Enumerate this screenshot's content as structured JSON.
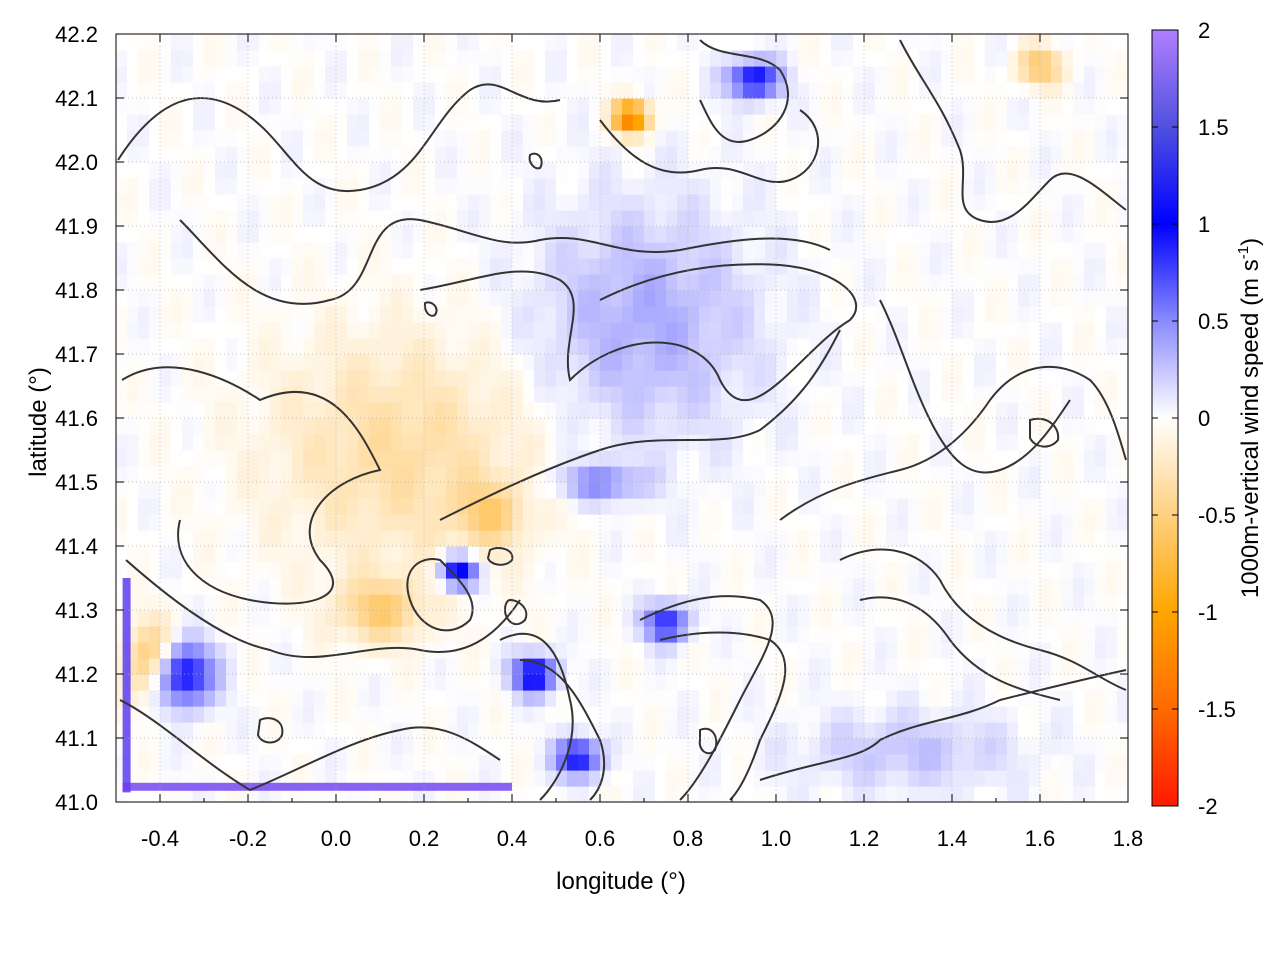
{
  "chart_data": {
    "type": "heatmap",
    "title": "",
    "xlabel": "longitude (°)",
    "ylabel": "latitude (°)",
    "xlim": [
      -0.5,
      1.8
    ],
    "ylim": [
      41.0,
      42.2
    ],
    "x_ticks": [
      "-0.4",
      "-0.2",
      "0.0",
      "0.2",
      "0.4",
      "0.6",
      "0.8",
      "1.0",
      "1.2",
      "1.4",
      "1.6",
      "1.8"
    ],
    "x_tick_values": [
      -0.4,
      -0.2,
      0.0,
      0.2,
      0.4,
      0.6,
      0.8,
      1.0,
      1.2,
      1.4,
      1.6,
      1.8
    ],
    "y_ticks": [
      "41.0",
      "41.1",
      "41.2",
      "41.3",
      "41.4",
      "41.5",
      "41.6",
      "41.7",
      "41.8",
      "41.9",
      "42.0",
      "42.1",
      "42.2"
    ],
    "y_tick_values": [
      41.0,
      41.1,
      41.2,
      41.3,
      41.4,
      41.5,
      41.6,
      41.7,
      41.8,
      41.9,
      42.0,
      42.1,
      42.2
    ],
    "grid": true,
    "colorbar": {
      "label_main": "1000m-vertical wind speed (m s",
      "label_sup": "-1",
      "label_end": ")",
      "range": [
        -2,
        2
      ],
      "tick_labels": [
        "2",
        "1.5",
        "1",
        "0.5",
        "0",
        "-0.5",
        "-1",
        "-1.5",
        "-2"
      ],
      "tick_values": [
        2,
        1.5,
        1,
        0.5,
        0,
        -0.5,
        -1,
        -1.5,
        -2
      ],
      "colors": [
        {
          "value": -2.0,
          "color": "#ff1a00"
        },
        {
          "value": -1.5,
          "color": "#ff6a00"
        },
        {
          "value": -1.0,
          "color": "#ffa500"
        },
        {
          "value": -0.5,
          "color": "#ffd080"
        },
        {
          "value": 0.0,
          "color": "#ffffff"
        },
        {
          "value": 0.5,
          "color": "#8a8aff"
        },
        {
          "value": 1.0,
          "color": "#0000ff"
        },
        {
          "value": 1.5,
          "color": "#5050e0"
        },
        {
          "value": 2.0,
          "color": "#b080ff"
        }
      ]
    },
    "field_blobs": [
      {
        "lon": 0.15,
        "lat": 41.55,
        "rlon": 0.3,
        "rlat": 0.18,
        "w": -0.35
      },
      {
        "lon": -0.42,
        "lat": 41.22,
        "rlon": 0.06,
        "rlat": 0.06,
        "w": -0.7
      },
      {
        "lon": -0.35,
        "lat": 41.2,
        "rlon": 0.07,
        "rlat": 0.05,
        "w": 1.1
      },
      {
        "lon": 0.67,
        "lat": 42.07,
        "rlon": 0.04,
        "rlat": 0.025,
        "w": -1.4
      },
      {
        "lon": 0.95,
        "lat": 42.13,
        "rlon": 0.06,
        "rlat": 0.03,
        "w": 1.0
      },
      {
        "lon": 0.7,
        "lat": 41.75,
        "rlon": 0.25,
        "rlat": 0.18,
        "w": 0.35
      },
      {
        "lon": 0.28,
        "lat": 41.36,
        "rlon": 0.04,
        "rlat": 0.025,
        "w": 1.2
      },
      {
        "lon": 0.45,
        "lat": 41.2,
        "rlon": 0.05,
        "rlat": 0.03,
        "w": 1.1
      },
      {
        "lon": 0.55,
        "lat": 41.07,
        "rlon": 0.05,
        "rlat": 0.03,
        "w": 1.0
      },
      {
        "lon": 0.75,
        "lat": 41.28,
        "rlon": 0.05,
        "rlat": 0.03,
        "w": 0.9
      },
      {
        "lon": 0.35,
        "lat": 41.45,
        "rlon": 0.08,
        "rlat": 0.05,
        "w": -0.4
      },
      {
        "lon": 1.6,
        "lat": 42.15,
        "rlon": 0.05,
        "rlat": 0.03,
        "w": -0.6
      },
      {
        "lon": 1.3,
        "lat": 41.08,
        "rlon": 0.25,
        "rlat": 0.06,
        "w": 0.25
      },
      {
        "lon": 0.1,
        "lat": 41.3,
        "rlon": 0.1,
        "rlat": 0.05,
        "w": -0.5
      },
      {
        "lon": 0.6,
        "lat": 41.5,
        "rlon": 0.1,
        "rlat": 0.03,
        "w": 0.5
      }
    ]
  }
}
